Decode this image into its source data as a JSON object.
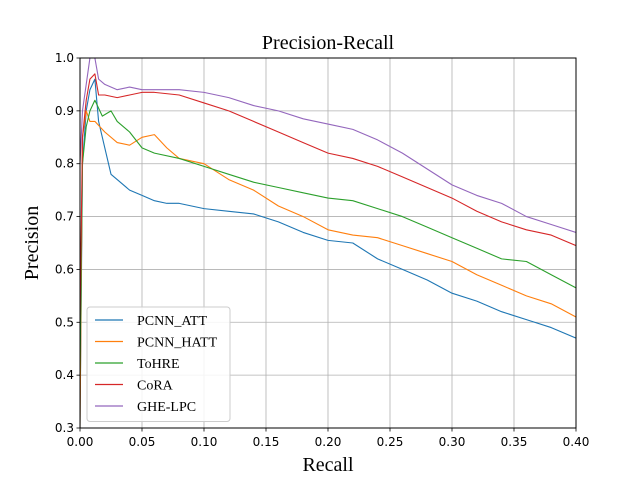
{
  "chart_data": {
    "type": "line",
    "title": "Precision-Recall",
    "xlabel": "Recall",
    "ylabel": "Precision",
    "xlim": [
      0.0,
      0.4
    ],
    "ylim": [
      0.3,
      1.0
    ],
    "xticks": [
      "0.00",
      "0.05",
      "0.10",
      "0.15",
      "0.20",
      "0.25",
      "0.30",
      "0.35",
      "0.40"
    ],
    "yticks": [
      "0.3",
      "0.4",
      "0.5",
      "0.6",
      "0.7",
      "0.8",
      "0.9",
      "1.0"
    ],
    "grid": true,
    "legend_position": "lower-left",
    "series": [
      {
        "name": "PCNN_ATT",
        "color": "#1f77b4",
        "points": [
          [
            0.0,
            0.3
          ],
          [
            0.002,
            0.8
          ],
          [
            0.005,
            0.9
          ],
          [
            0.008,
            0.94
          ],
          [
            0.012,
            0.96
          ],
          [
            0.015,
            0.88
          ],
          [
            0.02,
            0.83
          ],
          [
            0.025,
            0.78
          ],
          [
            0.03,
            0.77
          ],
          [
            0.04,
            0.75
          ],
          [
            0.05,
            0.74
          ],
          [
            0.06,
            0.73
          ],
          [
            0.07,
            0.725
          ],
          [
            0.08,
            0.725
          ],
          [
            0.1,
            0.715
          ],
          [
            0.12,
            0.71
          ],
          [
            0.14,
            0.705
          ],
          [
            0.16,
            0.69
          ],
          [
            0.18,
            0.67
          ],
          [
            0.2,
            0.655
          ],
          [
            0.22,
            0.65
          ],
          [
            0.24,
            0.62
          ],
          [
            0.26,
            0.6
          ],
          [
            0.28,
            0.58
          ],
          [
            0.3,
            0.555
          ],
          [
            0.32,
            0.54
          ],
          [
            0.34,
            0.52
          ],
          [
            0.36,
            0.505
          ],
          [
            0.38,
            0.49
          ],
          [
            0.4,
            0.47
          ]
        ]
      },
      {
        "name": "PCNN_HATT",
        "color": "#ff7f0e",
        "points": [
          [
            0.0,
            0.3
          ],
          [
            0.002,
            0.85
          ],
          [
            0.005,
            0.9
          ],
          [
            0.008,
            0.88
          ],
          [
            0.012,
            0.88
          ],
          [
            0.02,
            0.86
          ],
          [
            0.03,
            0.84
          ],
          [
            0.04,
            0.835
          ],
          [
            0.05,
            0.85
          ],
          [
            0.06,
            0.855
          ],
          [
            0.07,
            0.83
          ],
          [
            0.08,
            0.81
          ],
          [
            0.1,
            0.8
          ],
          [
            0.12,
            0.77
          ],
          [
            0.14,
            0.75
          ],
          [
            0.16,
            0.72
          ],
          [
            0.18,
            0.7
          ],
          [
            0.2,
            0.675
          ],
          [
            0.22,
            0.665
          ],
          [
            0.24,
            0.66
          ],
          [
            0.26,
            0.645
          ],
          [
            0.28,
            0.63
          ],
          [
            0.3,
            0.615
          ],
          [
            0.32,
            0.59
          ],
          [
            0.34,
            0.57
          ],
          [
            0.36,
            0.55
          ],
          [
            0.38,
            0.535
          ],
          [
            0.4,
            0.51
          ]
        ]
      },
      {
        "name": "ToHRE",
        "color": "#2ca02c",
        "points": [
          [
            0.0,
            0.4
          ],
          [
            0.002,
            0.8
          ],
          [
            0.005,
            0.87
          ],
          [
            0.008,
            0.9
          ],
          [
            0.012,
            0.92
          ],
          [
            0.018,
            0.89
          ],
          [
            0.025,
            0.9
          ],
          [
            0.03,
            0.88
          ],
          [
            0.04,
            0.86
          ],
          [
            0.05,
            0.83
          ],
          [
            0.06,
            0.82
          ],
          [
            0.08,
            0.81
          ],
          [
            0.1,
            0.795
          ],
          [
            0.12,
            0.78
          ],
          [
            0.14,
            0.765
          ],
          [
            0.16,
            0.755
          ],
          [
            0.18,
            0.745
          ],
          [
            0.2,
            0.735
          ],
          [
            0.22,
            0.73
          ],
          [
            0.24,
            0.715
          ],
          [
            0.26,
            0.7
          ],
          [
            0.28,
            0.68
          ],
          [
            0.3,
            0.66
          ],
          [
            0.32,
            0.64
          ],
          [
            0.34,
            0.62
          ],
          [
            0.36,
            0.615
          ],
          [
            0.38,
            0.59
          ],
          [
            0.4,
            0.565
          ]
        ]
      },
      {
        "name": "CoRA",
        "color": "#d62728",
        "points": [
          [
            0.0,
            0.5
          ],
          [
            0.002,
            0.85
          ],
          [
            0.005,
            0.92
          ],
          [
            0.008,
            0.96
          ],
          [
            0.012,
            0.97
          ],
          [
            0.015,
            0.93
          ],
          [
            0.02,
            0.93
          ],
          [
            0.03,
            0.925
          ],
          [
            0.04,
            0.93
          ],
          [
            0.05,
            0.935
          ],
          [
            0.06,
            0.935
          ],
          [
            0.08,
            0.93
          ],
          [
            0.1,
            0.915
          ],
          [
            0.12,
            0.9
          ],
          [
            0.14,
            0.88
          ],
          [
            0.16,
            0.86
          ],
          [
            0.18,
            0.84
          ],
          [
            0.2,
            0.82
          ],
          [
            0.22,
            0.81
          ],
          [
            0.24,
            0.795
          ],
          [
            0.26,
            0.775
          ],
          [
            0.28,
            0.755
          ],
          [
            0.3,
            0.735
          ],
          [
            0.32,
            0.71
          ],
          [
            0.34,
            0.69
          ],
          [
            0.36,
            0.675
          ],
          [
            0.38,
            0.665
          ],
          [
            0.4,
            0.645
          ]
        ]
      },
      {
        "name": "GHE-LPC",
        "color": "#9467bd",
        "points": [
          [
            0.0,
            0.8
          ],
          [
            0.002,
            0.9
          ],
          [
            0.005,
            0.95
          ],
          [
            0.008,
            1.0
          ],
          [
            0.012,
            1.0
          ],
          [
            0.015,
            0.96
          ],
          [
            0.02,
            0.95
          ],
          [
            0.03,
            0.94
          ],
          [
            0.04,
            0.945
          ],
          [
            0.05,
            0.94
          ],
          [
            0.06,
            0.94
          ],
          [
            0.08,
            0.94
          ],
          [
            0.1,
            0.935
          ],
          [
            0.12,
            0.925
          ],
          [
            0.14,
            0.91
          ],
          [
            0.16,
            0.9
          ],
          [
            0.18,
            0.885
          ],
          [
            0.2,
            0.875
          ],
          [
            0.22,
            0.865
          ],
          [
            0.24,
            0.845
          ],
          [
            0.26,
            0.82
          ],
          [
            0.28,
            0.79
          ],
          [
            0.3,
            0.76
          ],
          [
            0.32,
            0.74
          ],
          [
            0.34,
            0.725
          ],
          [
            0.36,
            0.7
          ],
          [
            0.38,
            0.685
          ],
          [
            0.4,
            0.67
          ]
        ]
      }
    ]
  }
}
